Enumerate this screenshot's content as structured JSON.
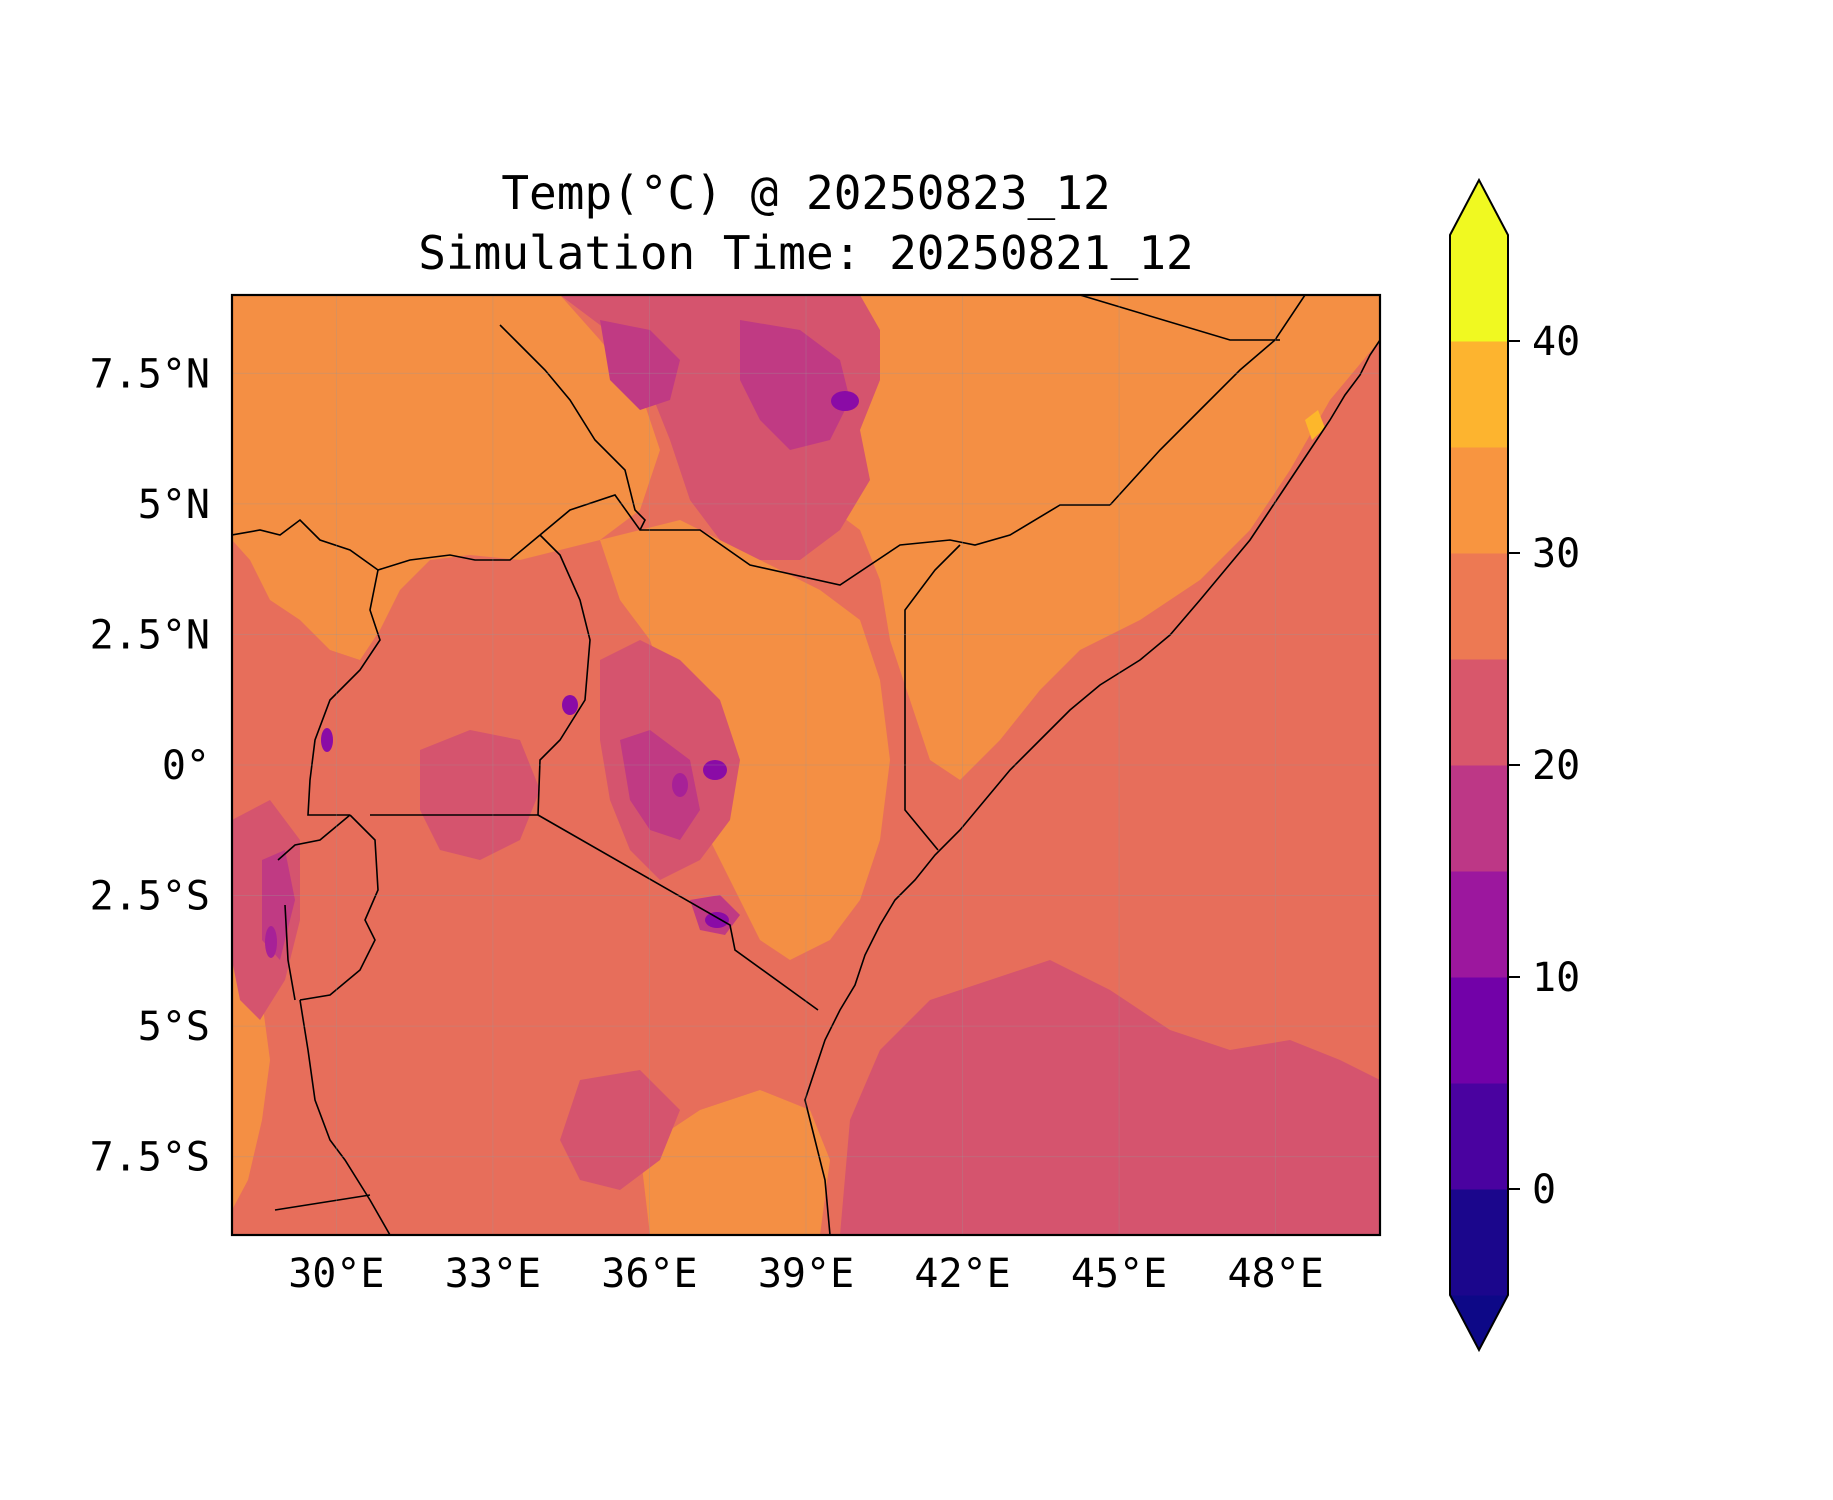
{
  "title": {
    "line1": "Temp(°C) @ 20250823_12",
    "line2": "Simulation Time: 20250821_12"
  },
  "map": {
    "extent": {
      "lon": [
        28,
        50.0
      ],
      "lat": [
        -9.0,
        9.0
      ]
    },
    "lon_ticks": [
      {
        "value": 30,
        "label": "30°E"
      },
      {
        "value": 33,
        "label": "33°E"
      },
      {
        "value": 36,
        "label": "36°E"
      },
      {
        "value": 39,
        "label": "39°E"
      },
      {
        "value": 42,
        "label": "42°E"
      },
      {
        "value": 45,
        "label": "45°E"
      },
      {
        "value": 48,
        "label": "48°E"
      }
    ],
    "lat_ticks": [
      {
        "value": 7.5,
        "label": "7.5°N"
      },
      {
        "value": 5,
        "label": "5°N"
      },
      {
        "value": 2.5,
        "label": "2.5°N"
      },
      {
        "value": 0,
        "label": "0°"
      },
      {
        "value": -2.5,
        "label": "2.5°S"
      },
      {
        "value": -5,
        "label": "5°S"
      },
      {
        "value": -7.5,
        "label": "7.5°S"
      }
    ],
    "gridlines": true,
    "colors": {
      "lt10": "#8a0ba6",
      "10_15": "#a72197",
      "15_20": "#c03a83",
      "20_25": "#d5546e",
      "25_30": "#e76e5b",
      "30_35": "#f48f44",
      "35_40": "#fdb72b",
      "40_45": "#f4e72a"
    }
  },
  "colorbar": {
    "levels": [
      -5,
      0,
      5,
      10,
      15,
      20,
      25,
      30,
      35,
      40,
      45
    ],
    "colors": [
      "#1b068c",
      "#4a02a0",
      "#7201a8",
      "#9c179e",
      "#bd3786",
      "#d8576b",
      "#ed7953",
      "#f89540",
      "#fdb42f",
      "#f0f921"
    ],
    "under_color": "#0d0887",
    "over_color": "#f0f921",
    "extend": "both",
    "tick_values": [
      0,
      10,
      20,
      30,
      40
    ],
    "tick_labels": [
      "0",
      "10",
      "20",
      "30",
      "40"
    ]
  }
}
